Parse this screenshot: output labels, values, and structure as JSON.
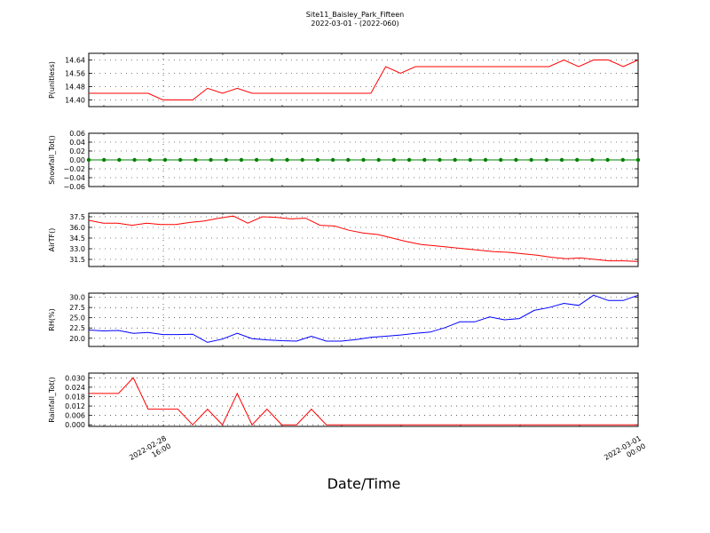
{
  "title_line1": "Site11_Baisley_Park_Fifteen",
  "title_line2": "2022-03-01 - (2022-060)",
  "xlabel": "Date/Time",
  "x_ticks": [
    {
      "lines": [
        "2022-02-28",
        "16:00"
      ]
    },
    {
      "lines": [
        "2022-03-01",
        "00:00"
      ]
    }
  ],
  "chart_data": [
    {
      "type": "line",
      "ylabel": "P(unitless)",
      "color": "#ff0000",
      "ylim": [
        14.36,
        14.68
      ],
      "yticks": [
        "14.40",
        "14.48",
        "14.56",
        "14.64"
      ],
      "ytick_values": [
        14.4,
        14.48,
        14.56,
        14.64
      ],
      "values": [
        14.44,
        14.44,
        14.44,
        14.44,
        14.44,
        14.4,
        14.4,
        14.4,
        14.47,
        14.44,
        14.47,
        14.44,
        14.44,
        14.44,
        14.44,
        14.44,
        14.44,
        14.44,
        14.44,
        14.44,
        14.6,
        14.56,
        14.6,
        14.6,
        14.6,
        14.6,
        14.6,
        14.6,
        14.6,
        14.6,
        14.6,
        14.6,
        14.64,
        14.6,
        14.64,
        14.64,
        14.6,
        14.64
      ]
    },
    {
      "type": "line",
      "ylabel": "Snowfall_Tot()",
      "color": "#008000",
      "markers": true,
      "ylim": [
        -0.06,
        0.06
      ],
      "yticks": [
        "−0.06",
        "−0.04",
        "−0.02",
        "0.00",
        "0.02",
        "0.04",
        "0.06"
      ],
      "ytick_values": [
        -0.06,
        -0.04,
        -0.02,
        0.0,
        0.02,
        0.04,
        0.06
      ],
      "values": [
        0,
        0,
        0,
        0,
        0,
        0,
        0,
        0,
        0,
        0,
        0,
        0,
        0,
        0,
        0,
        0,
        0,
        0,
        0,
        0,
        0,
        0,
        0,
        0,
        0,
        0,
        0,
        0,
        0,
        0,
        0,
        0,
        0,
        0,
        0,
        0,
        0
      ]
    },
    {
      "type": "line",
      "ylabel": "AirTF()",
      "color": "#ff0000",
      "ylim": [
        30.5,
        38.0
      ],
      "yticks": [
        "31.5",
        "33.0",
        "34.5",
        "36.0",
        "37.5"
      ],
      "ytick_values": [
        31.5,
        33.0,
        34.5,
        36.0,
        37.5
      ],
      "values": [
        37.0,
        36.6,
        36.6,
        36.3,
        36.6,
        36.4,
        36.4,
        36.7,
        36.9,
        37.3,
        37.6,
        36.6,
        37.5,
        37.4,
        37.2,
        37.3,
        36.3,
        36.2,
        35.6,
        35.2,
        35.0,
        34.5,
        34.0,
        33.6,
        33.4,
        33.2,
        33.0,
        32.8,
        32.6,
        32.5,
        32.3,
        32.1,
        31.8,
        31.6,
        31.7,
        31.5,
        31.3,
        31.3,
        31.2
      ]
    },
    {
      "type": "line",
      "ylabel": "RH(%)",
      "color": "#0000ff",
      "ylim": [
        18.0,
        31.0
      ],
      "yticks": [
        "20.0",
        "22.5",
        "25.0",
        "27.5",
        "30.0"
      ],
      "ytick_values": [
        20.0,
        22.5,
        25.0,
        27.5,
        30.0
      ],
      "values": [
        22.0,
        21.8,
        21.9,
        21.2,
        21.4,
        20.9,
        20.9,
        21.0,
        19.0,
        19.8,
        21.2,
        19.9,
        19.6,
        19.4,
        19.3,
        20.5,
        19.3,
        19.3,
        19.7,
        20.2,
        20.5,
        20.8,
        21.2,
        21.5,
        22.6,
        24.0,
        24.0,
        25.2,
        24.5,
        24.8,
        26.8,
        27.5,
        28.5,
        28.0,
        30.5,
        29.2,
        29.2,
        30.5
      ]
    },
    {
      "type": "line",
      "ylabel": "Rainfall_Tot()",
      "color": "#ff0000",
      "ylim": [
        -0.001,
        0.033
      ],
      "yticks": [
        "0.000",
        "0.006",
        "0.012",
        "0.018",
        "0.024",
        "0.030"
      ],
      "ytick_values": [
        0.0,
        0.006,
        0.012,
        0.018,
        0.024,
        0.03
      ],
      "values": [
        0.02,
        0.02,
        0.02,
        0.03,
        0.01,
        0.01,
        0.01,
        0.0,
        0.01,
        0.0,
        0.02,
        0.0,
        0.01,
        0.0,
        0.0,
        0.01,
        0.0,
        0.0,
        0.0,
        0.0,
        0.0,
        0.0,
        0.0,
        0.0,
        0.0,
        0.0,
        0.0,
        0.0,
        0.0,
        0.0,
        0.0,
        0.0,
        0.0,
        0.0,
        0.0,
        0.0,
        0.0,
        0.0
      ]
    }
  ]
}
